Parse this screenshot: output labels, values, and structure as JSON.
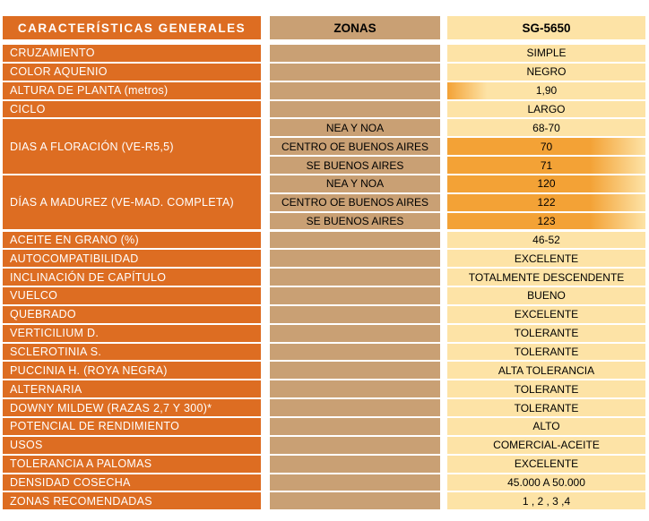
{
  "header": {
    "col1": "CARACTERÍSTICAS GENERALES",
    "col2": "ZONAS",
    "col3": "SG-5650"
  },
  "rows": [
    {
      "label": "CRUZAMIENTO",
      "value": "SIMPLE"
    },
    {
      "label": "COLOR AQUENIO",
      "value": "NEGRO"
    },
    {
      "label": "ALTURA DE PLANTA (metros)",
      "value": "1,90"
    },
    {
      "label": "CICLO",
      "value": "LARGO"
    },
    {
      "label": "DIAS A FLORACIÓN (VE-R5,5)",
      "zones": [
        {
          "zone": "NEA Y NOA",
          "value": "68-70"
        },
        {
          "zone": "CENTRO OE BUENOS AIRES",
          "value": "70"
        },
        {
          "zone": "SE BUENOS AIRES",
          "value": "71"
        }
      ]
    },
    {
      "label": "DÍAS A MADUREZ (VE-MAD. COMPLETA)",
      "zones": [
        {
          "zone": "NEA Y NOA",
          "value": "120"
        },
        {
          "zone": "CENTRO OE BUENOS AIRES",
          "value": "122"
        },
        {
          "zone": "SE BUENOS AIRES",
          "value": "123"
        }
      ]
    },
    {
      "label": "ACEITE EN GRANO (%)",
      "value": "46-52"
    },
    {
      "label": "AUTOCOMPATIBILIDAD",
      "value": "EXCELENTE"
    },
    {
      "label": "INCLINACIÓN DE CAPÍTULO",
      "value": "TOTALMENTE DESCENDENTE"
    },
    {
      "label": "VUELCO",
      "value": "BUENO"
    },
    {
      "label": "QUEBRADO",
      "value": "EXCELENTE"
    },
    {
      "label": "VERTICILIUM D.",
      "value": "TOLERANTE"
    },
    {
      "label": "SCLEROTINIA S.",
      "value": "TOLERANTE"
    },
    {
      "label": "PUCCINIA H. (ROYA NEGRA)",
      "value": "ALTA TOLERANCIA"
    },
    {
      "label": "ALTERNARIA",
      "value": "TOLERANTE"
    },
    {
      "label": "DOWNY MILDEW (RAZAS 2,7 Y 300)*",
      "value": "TOLERANTE"
    },
    {
      "label": "POTENCIAL DE RENDIMIENTO",
      "value": "ALTO"
    },
    {
      "label": "USOS",
      "value": "COMERCIAL-ACEITE"
    },
    {
      "label": "TOLERANCIA A PALOMAS",
      "value": "EXCELENTE"
    },
    {
      "label": "DENSIDAD COSECHA",
      "value": "45.000 A 50.000"
    },
    {
      "label": "ZONAS RECOMENDADAS",
      "value": "1 , 2 , 3 ,4"
    }
  ],
  "colors": {
    "label_bg": "#dd6d22",
    "zone_bg": "#c9a074",
    "value_bg": "#fde3a6",
    "highlight": "#f3a236"
  }
}
